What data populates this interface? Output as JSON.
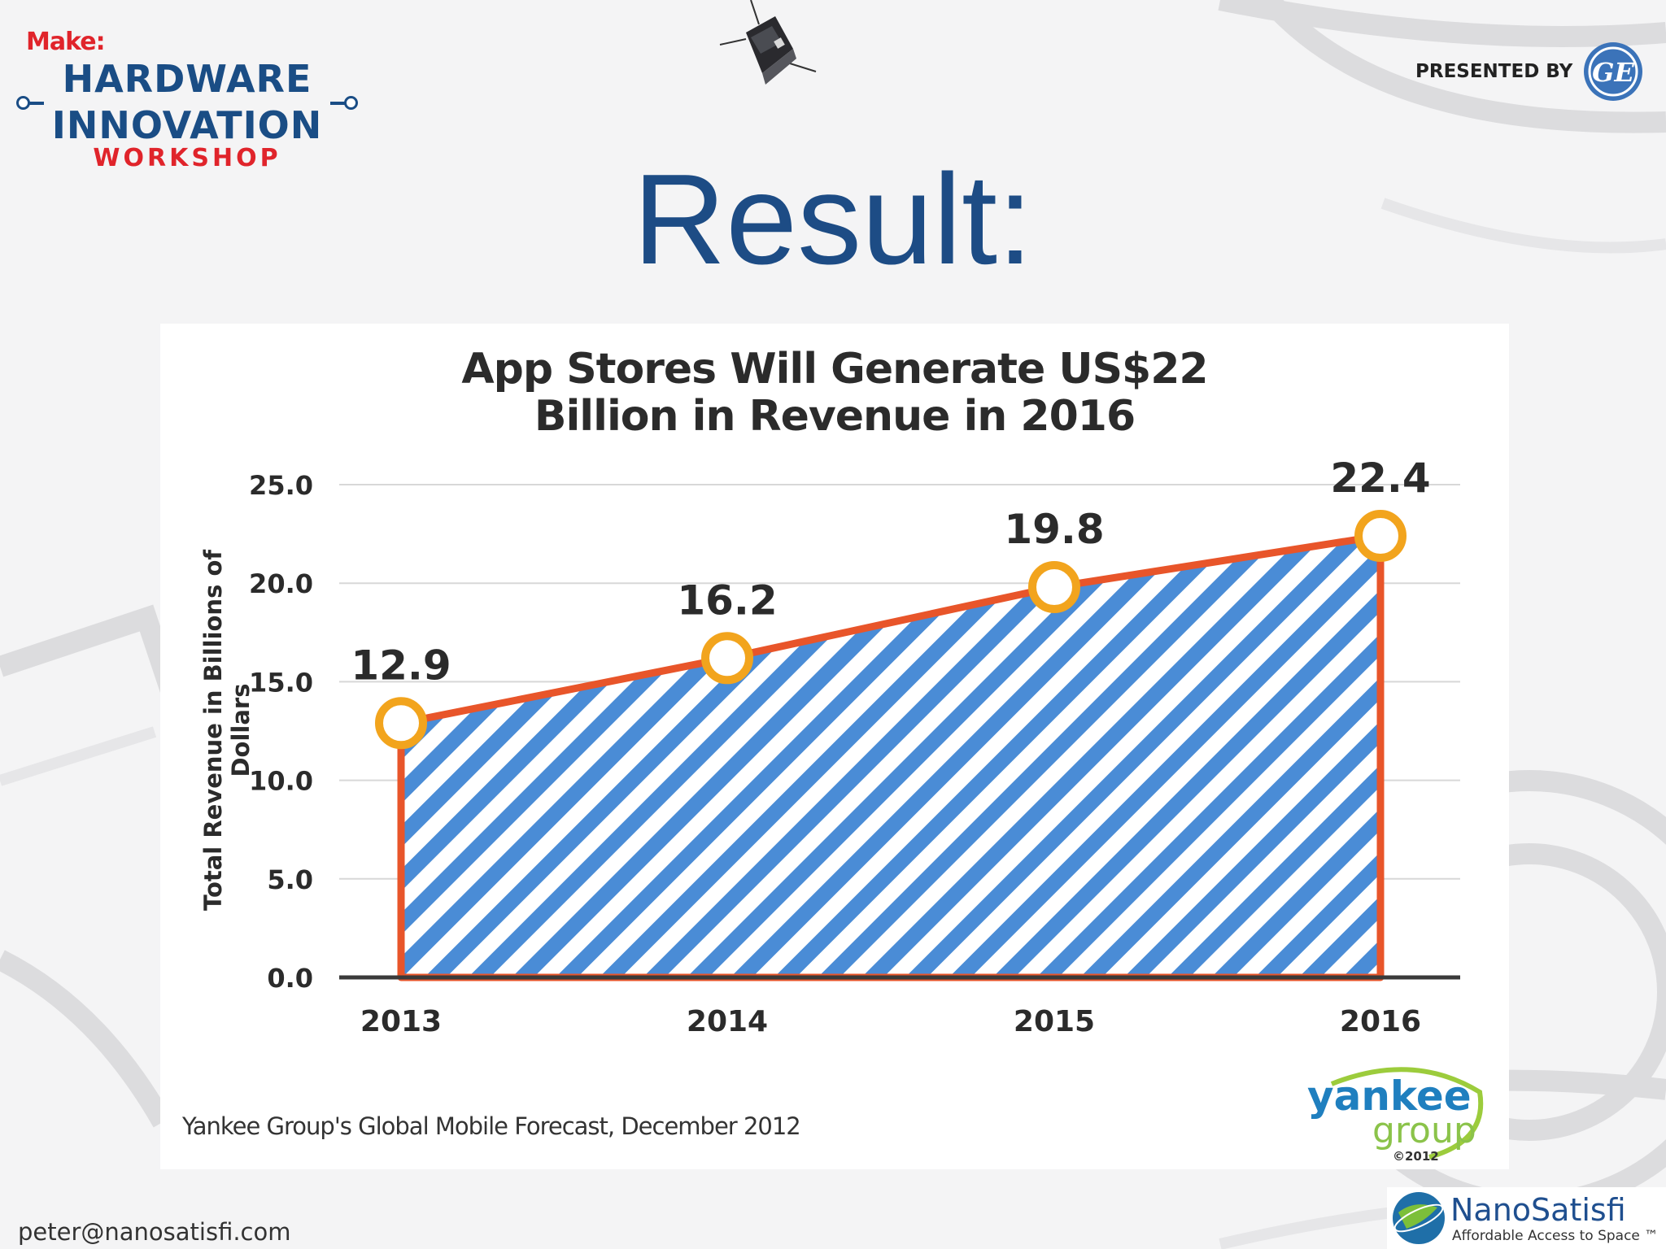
{
  "header": {
    "make_logo": {
      "make": "Make:",
      "line1": "HARDWARE",
      "line2": "INNOVATION",
      "line3": "WORKSHOP"
    },
    "presented_by": "PRESENTED BY",
    "sponsor_logo": "GE"
  },
  "slide": {
    "title": "Result:"
  },
  "chart_data": {
    "type": "area",
    "title": [
      "App Stores Will Generate US$22",
      "Billion in Revenue in 2016"
    ],
    "xlabel": "",
    "ylabel": "Total Revenue in Billions of Dollars",
    "categories": [
      "2013",
      "2014",
      "2015",
      "2016"
    ],
    "values": [
      12.9,
      16.2,
      19.8,
      22.4
    ],
    "value_labels": [
      "12.9",
      "16.2",
      "19.8",
      "22.4"
    ],
    "ylim": [
      0,
      25
    ],
    "yticks": [
      "0.0",
      "5.0",
      "10.0",
      "15.0",
      "20.0",
      "25.0"
    ],
    "grid": true,
    "fill": "diagonal blue stripes",
    "colors": {
      "line": "#e8552a",
      "marker": "#f2a41d",
      "stripe": "#4a8cd6",
      "grid": "#d8d8d8"
    },
    "source": "Yankee Group's Global Mobile Forecast, December 2012",
    "source_logo": {
      "line1": "yankee",
      "line2": "group",
      "mark": "©2012"
    }
  },
  "footer": {
    "email": "peter@nanosatisfi.com",
    "brand_logo": {
      "name": "NanoSatisfi",
      "tagline": "Affordable Access to Space ™"
    }
  }
}
